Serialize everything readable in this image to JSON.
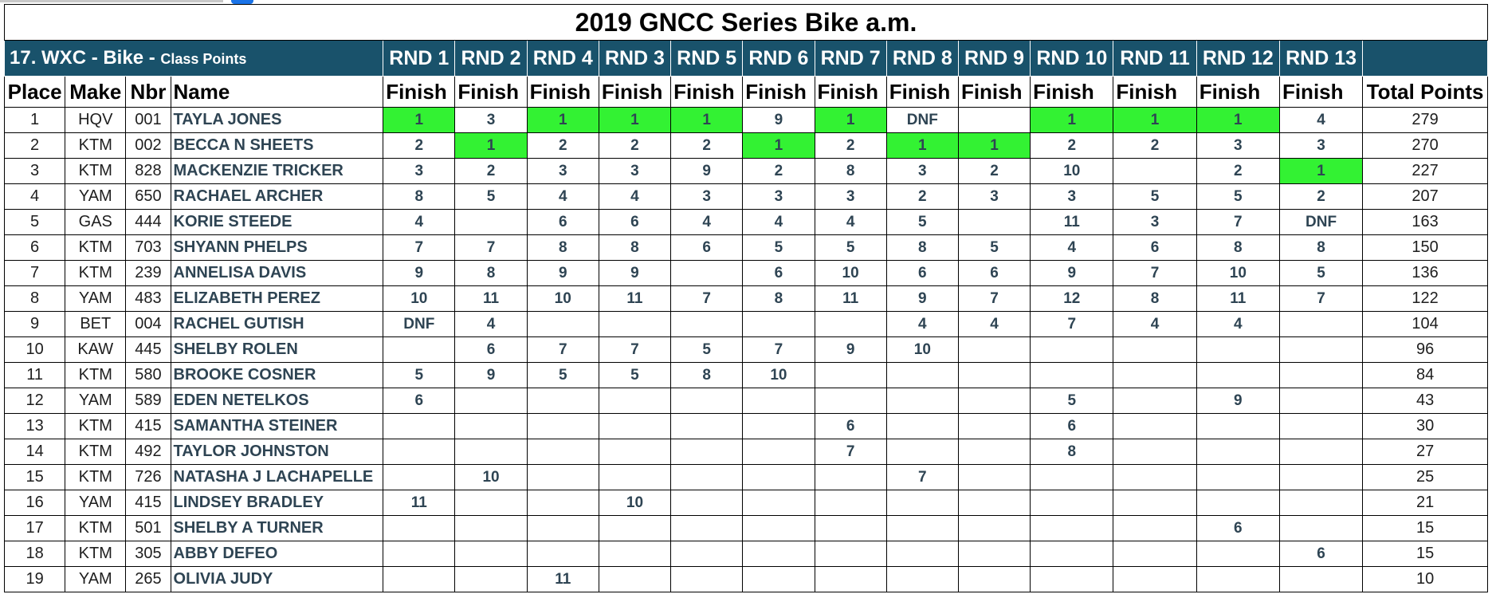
{
  "title": "2019 GNCC Series Bike a.m.",
  "class": {
    "name": "17. WXC - Bike - ",
    "sub": "Class Points"
  },
  "rounds": [
    "RND 1",
    "RND 2",
    "RND 4",
    "RND 3",
    "RND 5",
    "RND 6",
    "RND 7",
    "RND 8",
    "RND 9",
    "RND 10",
    "RND 11",
    "RND 12",
    "RND 13"
  ],
  "headers": {
    "place": "Place",
    "make": "Make",
    "nbr": "Nbr",
    "name": "Name",
    "finish": "Finish",
    "total": "Total Points"
  },
  "colors": {
    "header_bg": "#19526b",
    "winner_bg": "#33f233",
    "name_text": "#2e4453"
  },
  "rows": [
    {
      "place": "1",
      "make": "HQV",
      "nbr": "001",
      "name": "TAYLA JONES",
      "finishes": [
        "1",
        "3",
        "1",
        "1",
        "1",
        "9",
        "1",
        "DNF",
        "",
        "1",
        "1",
        "1",
        "4"
      ],
      "total": "279"
    },
    {
      "place": "2",
      "make": "KTM",
      "nbr": "002",
      "name": "BECCA N SHEETS",
      "finishes": [
        "2",
        "1",
        "2",
        "2",
        "2",
        "1",
        "2",
        "1",
        "1",
        "2",
        "2",
        "3",
        "3"
      ],
      "total": "270"
    },
    {
      "place": "3",
      "make": "KTM",
      "nbr": "828",
      "name": "MACKENZIE TRICKER",
      "finishes": [
        "3",
        "2",
        "3",
        "3",
        "9",
        "2",
        "8",
        "3",
        "2",
        "10",
        "",
        "2",
        "1"
      ],
      "total": "227"
    },
    {
      "place": "4",
      "make": "YAM",
      "nbr": "650",
      "name": "RACHAEL ARCHER",
      "finishes": [
        "8",
        "5",
        "4",
        "4",
        "3",
        "3",
        "3",
        "2",
        "3",
        "3",
        "5",
        "5",
        "2"
      ],
      "total": "207"
    },
    {
      "place": "5",
      "make": "GAS",
      "nbr": "444",
      "name": "KORIE STEEDE",
      "finishes": [
        "4",
        "",
        "6",
        "6",
        "4",
        "4",
        "4",
        "5",
        "",
        "11",
        "3",
        "7",
        "DNF"
      ],
      "total": "163"
    },
    {
      "place": "6",
      "make": "KTM",
      "nbr": "703",
      "name": "SHYANN PHELPS",
      "finishes": [
        "7",
        "7",
        "8",
        "8",
        "6",
        "5",
        "5",
        "8",
        "5",
        "4",
        "6",
        "8",
        "8"
      ],
      "total": "150"
    },
    {
      "place": "7",
      "make": "KTM",
      "nbr": "239",
      "name": "ANNELISA DAVIS",
      "finishes": [
        "9",
        "8",
        "9",
        "9",
        "",
        "6",
        "10",
        "6",
        "6",
        "9",
        "7",
        "10",
        "5"
      ],
      "total": "136"
    },
    {
      "place": "8",
      "make": "YAM",
      "nbr": "483",
      "name": "ELIZABETH PEREZ",
      "finishes": [
        "10",
        "11",
        "10",
        "11",
        "7",
        "8",
        "11",
        "9",
        "7",
        "12",
        "8",
        "11",
        "7"
      ],
      "total": "122"
    },
    {
      "place": "9",
      "make": "BET",
      "nbr": "004",
      "name": "RACHEL GUTISH",
      "finishes": [
        "DNF",
        "4",
        "",
        "",
        "",
        "",
        "",
        "4",
        "4",
        "7",
        "4",
        "4",
        ""
      ],
      "total": "104"
    },
    {
      "place": "10",
      "make": "KAW",
      "nbr": "445",
      "name": "SHELBY ROLEN",
      "finishes": [
        "",
        "6",
        "7",
        "7",
        "5",
        "7",
        "9",
        "10",
        "",
        "",
        "",
        "",
        ""
      ],
      "total": "96"
    },
    {
      "place": "11",
      "make": "KTM",
      "nbr": "580",
      "name": "BROOKE COSNER",
      "finishes": [
        "5",
        "9",
        "5",
        "5",
        "8",
        "10",
        "",
        "",
        "",
        "",
        "",
        "",
        ""
      ],
      "total": "84"
    },
    {
      "place": "12",
      "make": "YAM",
      "nbr": "589",
      "name": "EDEN NETELKOS",
      "finishes": [
        "6",
        "",
        "",
        "",
        "",
        "",
        "",
        "",
        "",
        "5",
        "",
        "9",
        ""
      ],
      "total": "43"
    },
    {
      "place": "13",
      "make": "KTM",
      "nbr": "415",
      "name": "SAMANTHA STEINER",
      "finishes": [
        "",
        "",
        "",
        "",
        "",
        "",
        "6",
        "",
        "",
        "6",
        "",
        "",
        ""
      ],
      "total": "30"
    },
    {
      "place": "14",
      "make": "KTM",
      "nbr": "492",
      "name": "TAYLOR JOHNSTON",
      "finishes": [
        "",
        "",
        "",
        "",
        "",
        "",
        "7",
        "",
        "",
        "8",
        "",
        "",
        ""
      ],
      "total": "27"
    },
    {
      "place": "15",
      "make": "KTM",
      "nbr": "726",
      "name": "NATASHA J LACHAPELLE",
      "finishes": [
        "",
        "10",
        "",
        "",
        "",
        "",
        "",
        "7",
        "",
        "",
        "",
        "",
        ""
      ],
      "total": "25"
    },
    {
      "place": "16",
      "make": "YAM",
      "nbr": "415",
      "name": "LINDSEY BRADLEY",
      "finishes": [
        "11",
        "",
        "",
        "10",
        "",
        "",
        "",
        "",
        "",
        "",
        "",
        "",
        ""
      ],
      "total": "21"
    },
    {
      "place": "17",
      "make": "KTM",
      "nbr": "501",
      "name": "SHELBY A TURNER",
      "finishes": [
        "",
        "",
        "",
        "",
        "",
        "",
        "",
        "",
        "",
        "",
        "",
        "6",
        ""
      ],
      "total": "15"
    },
    {
      "place": "18",
      "make": "KTM",
      "nbr": "305",
      "name": "ABBY DEFEO",
      "finishes": [
        "",
        "",
        "",
        "",
        "",
        "",
        "",
        "",
        "",
        "",
        "",
        "",
        "6"
      ],
      "total": "15"
    },
    {
      "place": "19",
      "make": "YAM",
      "nbr": "265",
      "name": "OLIVIA JUDY",
      "finishes": [
        "",
        "",
        "11",
        "",
        "",
        "",
        "",
        "",
        "",
        "",
        "",
        "",
        ""
      ],
      "total": "10"
    }
  ]
}
